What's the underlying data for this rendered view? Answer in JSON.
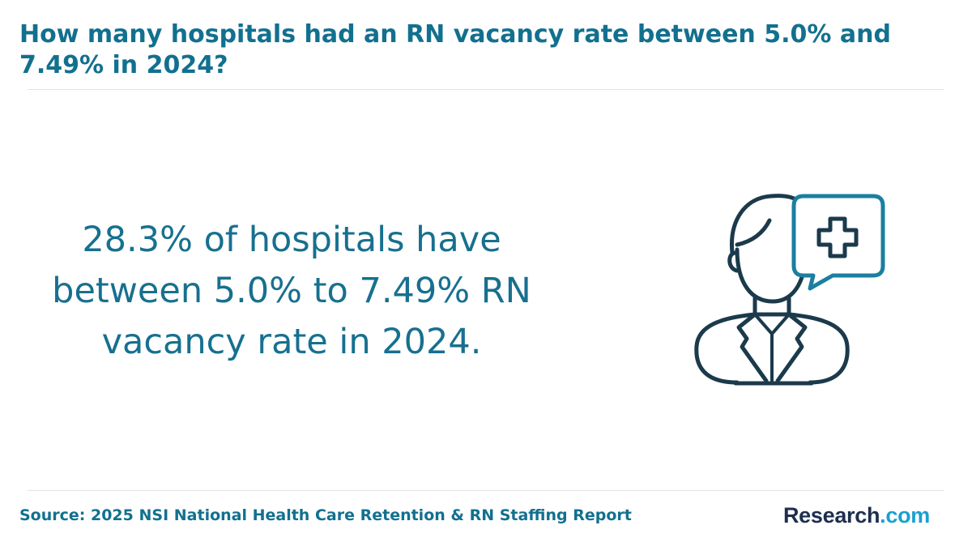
{
  "header": {
    "title": "How many hospitals had an RN vacancy rate between 5.0% and 7.49% in 2024?"
  },
  "main": {
    "statement_lines": [
      "28.3% of hospitals have",
      "between 5.0% to 7.49% RN",
      "vacancy rate in 2024."
    ],
    "illustration_icon": "doctor-with-medical-cross-speech-bubble-icon"
  },
  "footer": {
    "source": "Source: 2025 NSI National Health Care Retention & RN Staffing Report",
    "brand_name": "Research",
    "brand_tld": ".com"
  },
  "colors": {
    "title": "#12708f",
    "statement": "#17708f",
    "icon_dark": "#1b3a4b",
    "icon_accent": "#1a7fa0",
    "brand_name": "#1d2e4e",
    "brand_tld": "#1aa0d0"
  }
}
